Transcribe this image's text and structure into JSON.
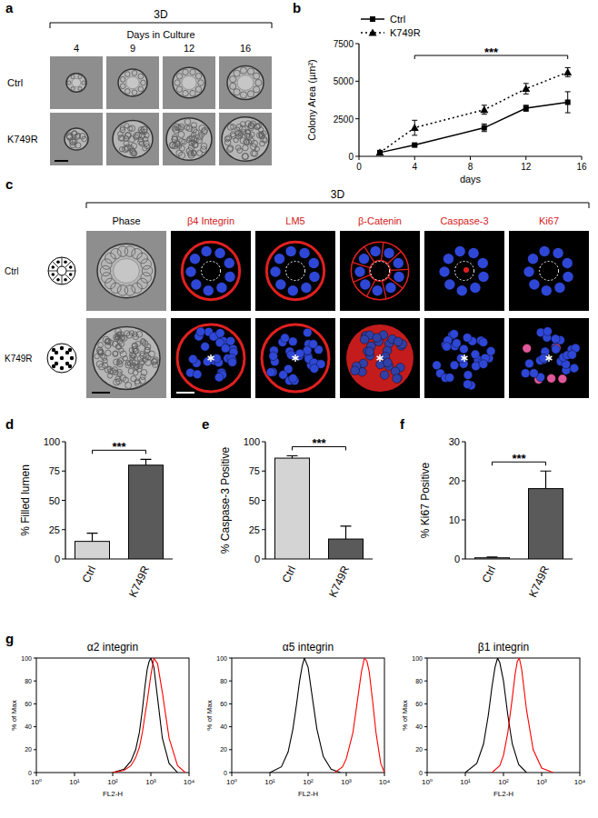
{
  "panel_labels": [
    "a",
    "b",
    "c",
    "d",
    "e",
    "f",
    "g"
  ],
  "panel_a": {
    "header": "3D",
    "subheader": "Days in Culture",
    "days": [
      "4",
      "9",
      "12",
      "16"
    ],
    "rows": [
      "Ctrl",
      "K749R"
    ]
  },
  "panel_c": {
    "header": "3D",
    "columns": [
      "Phase",
      "β4 Integrin",
      "LM5",
      "β-Catenin",
      "Caspase-3",
      "Ki67"
    ],
    "rows": [
      "Ctrl",
      "K749R"
    ]
  },
  "chart_data": [
    {
      "type": "line",
      "xlabel": "days",
      "ylabel": "Colony Area (µm²)",
      "x": [
        1.5,
        4,
        9,
        12,
        15
      ],
      "xlim": [
        0,
        16
      ],
      "xticks": [
        0,
        4,
        8,
        12,
        16
      ],
      "ylim": [
        0,
        7500
      ],
      "yticks": [
        0,
        2500,
        5000,
        7500
      ],
      "legend": "upper left",
      "series": [
        {
          "name": "Ctrl",
          "color": "#000000",
          "marker": "square",
          "line_style": "solid",
          "values": [
            250,
            750,
            1900,
            3200,
            3600
          ],
          "errors": [
            50,
            80,
            250,
            200,
            700
          ]
        },
        {
          "name": "K749R",
          "color": "#000000",
          "marker": "triangle",
          "line_style": "dotted",
          "values": [
            250,
            1900,
            3100,
            4500,
            5600
          ],
          "errors": [
            50,
            500,
            300,
            350,
            300
          ]
        }
      ],
      "annotations": [
        {
          "text": "***",
          "x": [
            4,
            15
          ]
        }
      ]
    },
    {
      "type": "bar",
      "ylabel": "% Filled lumen",
      "categories": [
        "Ctrl",
        "K749R"
      ],
      "values": [
        15,
        80
      ],
      "errors": [
        7,
        5
      ],
      "colors": [
        "#d4d4d4",
        "#5a5a5a"
      ],
      "ylim": [
        0,
        100
      ],
      "yticks": [
        0,
        25,
        50,
        75,
        100
      ],
      "annotations": [
        {
          "text": "***"
        }
      ]
    },
    {
      "type": "bar",
      "ylabel": "% Caspase-3 Positive",
      "categories": [
        "Ctrl",
        "K749R"
      ],
      "values": [
        86,
        17
      ],
      "errors": [
        2,
        11
      ],
      "colors": [
        "#d4d4d4",
        "#5a5a5a"
      ],
      "ylim": [
        0,
        100
      ],
      "yticks": [
        0,
        25,
        50,
        75,
        100
      ],
      "annotations": [
        {
          "text": "***"
        }
      ]
    },
    {
      "type": "bar",
      "ylabel": "% Ki67 Positive",
      "categories": [
        "Ctrl",
        "K749R"
      ],
      "values": [
        0.3,
        18
      ],
      "errors": [
        0.2,
        4.5
      ],
      "colors": [
        "#d4d4d4",
        "#5a5a5a"
      ],
      "ylim": [
        0,
        30
      ],
      "yticks": [
        0,
        10,
        20,
        30
      ],
      "annotations": [
        {
          "text": "***"
        }
      ]
    },
    {
      "type": "line",
      "title": "α2 integrin",
      "xlabel": "FL2-H",
      "ylabel": "% of Max",
      "log": "x",
      "xlim": [
        1,
        10000
      ],
      "xticks": [
        {
          "value": 1,
          "label": "10⁰"
        },
        {
          "value": 10,
          "label": "10¹"
        },
        {
          "value": 100,
          "label": "10²"
        },
        {
          "value": 1000,
          "label": "10³"
        },
        {
          "value": 10000,
          "label": "10⁴"
        }
      ],
      "ylim": [
        0,
        100
      ],
      "yticks": [
        0,
        20,
        40,
        60,
        80,
        100
      ],
      "series": [
        {
          "color": "#000000",
          "x": [
            100,
            200,
            300,
            400,
            500,
            600,
            700,
            800,
            900,
            1000,
            1200,
            1500,
            2000,
            3000,
            5000
          ],
          "values": [
            0,
            3,
            10,
            20,
            35,
            55,
            75,
            90,
            97,
            100,
            92,
            65,
            30,
            8,
            0
          ]
        },
        {
          "color": "#ff0000",
          "x": [
            100,
            200,
            300,
            400,
            500,
            600,
            700,
            800,
            1000,
            1200,
            1500,
            2000,
            3000,
            5000,
            8000
          ],
          "values": [
            0,
            2,
            6,
            13,
            22,
            35,
            50,
            62,
            85,
            100,
            95,
            70,
            30,
            6,
            0
          ]
        }
      ]
    },
    {
      "type": "line",
      "title": "α5 integrin",
      "xlabel": "FL2-H",
      "ylabel": "% of Max",
      "log": "x",
      "xlim": [
        1,
        10000
      ],
      "xticks": [
        {
          "value": 1,
          "label": "10⁰"
        },
        {
          "value": 10,
          "label": "10¹"
        },
        {
          "value": 100,
          "label": "10²"
        },
        {
          "value": 1000,
          "label": "10³"
        },
        {
          "value": 10000,
          "label": "10⁴"
        }
      ],
      "ylim": [
        0,
        100
      ],
      "yticks": [
        0,
        20,
        40,
        60,
        80,
        100
      ],
      "series": [
        {
          "color": "#000000",
          "x": [
            10,
            20,
            30,
            40,
            50,
            60,
            70,
            80,
            100,
            130,
            170,
            250,
            400,
            700
          ],
          "values": [
            0,
            5,
            18,
            38,
            60,
            80,
            93,
            100,
            92,
            65,
            38,
            14,
            3,
            0
          ]
        },
        {
          "color": "#ff0000",
          "x": [
            500,
            800,
            1000,
            1500,
            2000,
            2500,
            3000,
            3500,
            4000,
            5000,
            6000,
            8000,
            10000
          ],
          "values": [
            0,
            5,
            12,
            35,
            65,
            88,
            100,
            97,
            88,
            60,
            35,
            8,
            0
          ]
        }
      ]
    },
    {
      "type": "line",
      "title": "β1 integrin",
      "xlabel": "FL2-H",
      "ylabel": "% of Max",
      "log": "x",
      "xlim": [
        1,
        10000
      ],
      "xticks": [
        {
          "value": 1,
          "label": "10⁰"
        },
        {
          "value": 10,
          "label": "10¹"
        },
        {
          "value": 100,
          "label": "10²"
        },
        {
          "value": 1000,
          "label": "10³"
        },
        {
          "value": 10000,
          "label": "10⁴"
        }
      ],
      "ylim": [
        0,
        100
      ],
      "yticks": [
        0,
        20,
        40,
        60,
        80,
        100
      ],
      "series": [
        {
          "color": "#000000",
          "x": [
            10,
            20,
            30,
            40,
            50,
            60,
            70,
            80,
            100,
            130,
            170,
            250,
            400
          ],
          "values": [
            0,
            8,
            25,
            50,
            75,
            92,
            100,
            96,
            80,
            50,
            25,
            7,
            0
          ]
        },
        {
          "color": "#ff0000",
          "x": [
            50,
            80,
            100,
            130,
            170,
            200,
            230,
            260,
            300,
            400,
            600,
            1000,
            2000
          ],
          "values": [
            0,
            6,
            15,
            35,
            65,
            85,
            97,
            100,
            90,
            55,
            20,
            4,
            0
          ]
        }
      ]
    }
  ]
}
